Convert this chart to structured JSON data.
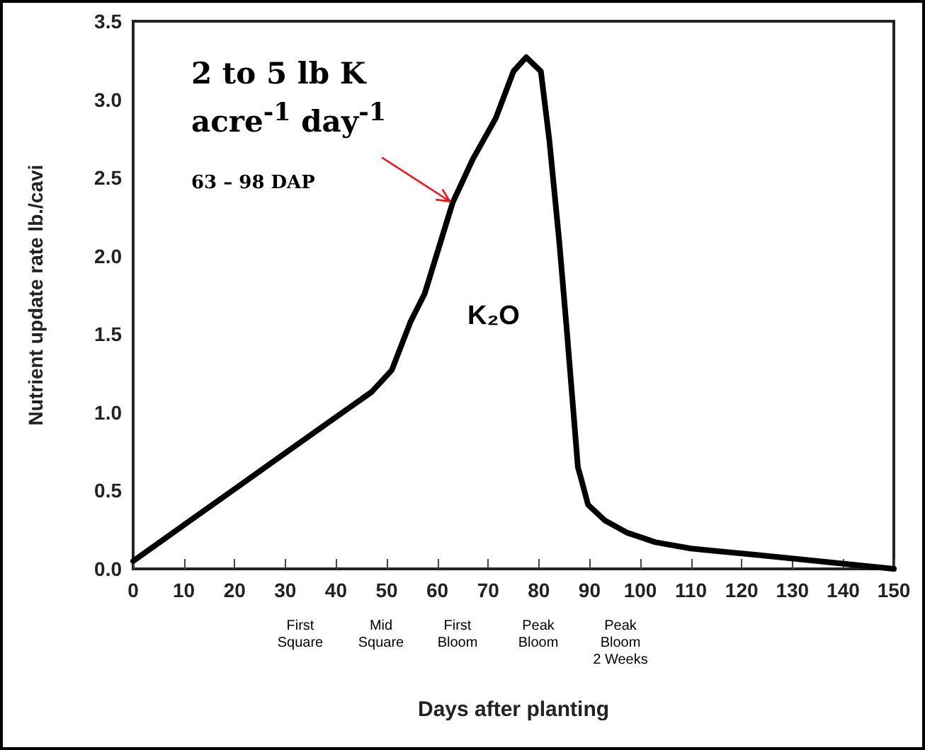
{
  "chart_data": {
    "type": "line",
    "xlabel": "Days after planting",
    "ylabel": "Nutrient update rate lb./cavi",
    "x": [
      0,
      10,
      20,
      30,
      40,
      47,
      51,
      54.7,
      57.5,
      63,
      67,
      71.5,
      75,
      77.5,
      80.4,
      82.1,
      84,
      85.5,
      87.7,
      88.3,
      89.7,
      93,
      97.5,
      103,
      110,
      122.6,
      135,
      150
    ],
    "series": [
      {
        "color": "#000000",
        "values": [
          0.05,
          0.28,
          0.51,
          0.74,
          0.97,
          1.13,
          1.27,
          1.58,
          1.76,
          2.34,
          2.62,
          2.88,
          3.18,
          3.27,
          3.18,
          2.73,
          2.1,
          1.53,
          0.65,
          0.58,
          0.41,
          0.31,
          0.23,
          0.17,
          0.13,
          0.09,
          0.05,
          0
        ]
      }
    ],
    "xlim": [
      0,
      150
    ],
    "xticks": [
      0,
      10,
      20,
      30,
      40,
      50,
      60,
      70,
      80,
      90,
      100,
      110,
      120,
      130,
      140,
      150
    ],
    "ylim": [
      0,
      3.5
    ],
    "yticks": [
      {
        "value": 0,
        "label": "0.0"
      },
      {
        "value": 0.5,
        "label": "0.5"
      },
      {
        "value": 1,
        "label": "1.0"
      },
      {
        "value": 1.5,
        "label": "1.5"
      },
      {
        "value": 2,
        "label": "2.0"
      },
      {
        "value": 2.5,
        "label": "2.5"
      },
      {
        "value": 3,
        "label": "3.0"
      },
      {
        "value": 3.5,
        "label": "3.5"
      }
    ],
    "grid": false,
    "marker": "none",
    "line_style": "solid",
    "annotations": [
      {
        "text": "2 to 5 lb K acre$^{-1}$ day$^{-1}$",
        "x": 63,
        "y": 2.34
      },
      "63 – 98 DAP",
      "K₂O",
      "First Square",
      "Mid Square",
      "First Bloom",
      "Peak Bloom",
      "Peak Bloom 2 Weeks"
    ]
  }
}
